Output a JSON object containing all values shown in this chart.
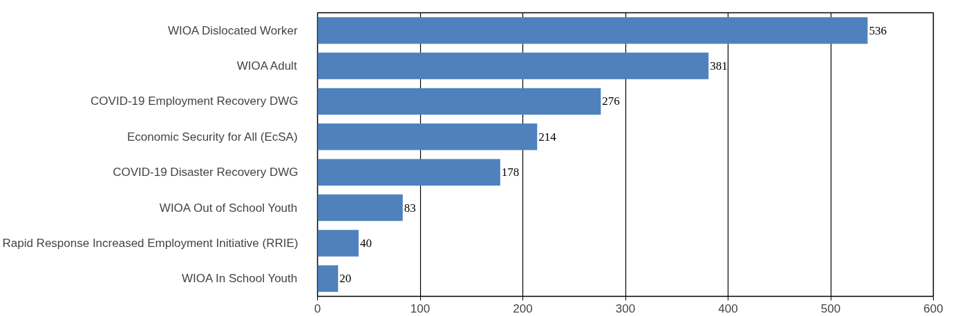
{
  "chart_data": {
    "type": "bar",
    "orientation": "horizontal",
    "categories": [
      "WIOA Dislocated Worker",
      "WIOA Adult",
      "COVID-19 Employment Recovery DWG",
      "Economic Security for All (EcSA)",
      "COVID-19 Disaster Recovery DWG",
      "WIOA Out of School Youth",
      "Rapid Response Increased Employment Initiative (RRIE)",
      "WIOA In School Youth"
    ],
    "values": [
      536,
      381,
      276,
      214,
      178,
      83,
      40,
      20
    ],
    "color": "#4f81bd",
    "xlim": [
      0,
      600
    ],
    "xticks": [
      0,
      100,
      200,
      300,
      400,
      500,
      600
    ],
    "grid": "x",
    "data_labels": true
  }
}
